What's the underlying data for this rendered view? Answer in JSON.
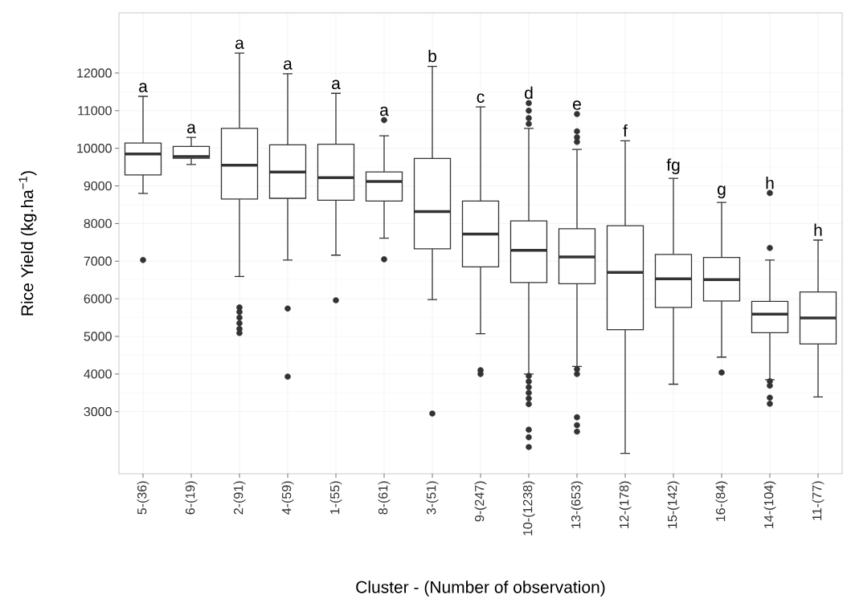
{
  "chart_data": {
    "type": "box",
    "xlabel": "Cluster - (Number of observation)",
    "ylabel": "Rice Yield (kg.ha$^{−1}$)",
    "color": "#333333",
    "grid": true,
    "categories": [
      "5-(36)",
      "6-(19)",
      "2-(91)",
      "4-(59)",
      "1-(55)",
      "8-(61)",
      "3-(51)",
      "9-(247)",
      "10-(1238)",
      "13-(653)",
      "12-(178)",
      "15-(142)",
      "16-(84)",
      "14-(104)",
      "11-(77)"
    ],
    "boxes": [
      {
        "low": 8800,
        "q1": 9290,
        "median": 9850,
        "q3": 10140,
        "high": 11380,
        "outliers": [
          7030
        ]
      },
      {
        "low": 9570,
        "q1": 9735,
        "median": 9780,
        "q3": 10050,
        "high": 10290
      },
      {
        "low": 6590,
        "q1": 8650,
        "median": 9550,
        "q3": 10530,
        "high": 12530,
        "outliers": [
          5770,
          5650,
          5500,
          5350,
          5200,
          5090
        ]
      },
      {
        "low": 7030,
        "q1": 8670,
        "median": 9370,
        "q3": 10090,
        "high": 11980,
        "outliers": [
          5740,
          3930
        ]
      },
      {
        "low": 7160,
        "q1": 8620,
        "median": 9220,
        "q3": 10110,
        "high": 11460,
        "outliers": [
          5960
        ]
      },
      {
        "low": 7610,
        "q1": 8600,
        "median": 9120,
        "q3": 9370,
        "high": 10330,
        "outliers": [
          10750,
          7050
        ]
      },
      {
        "low": 5980,
        "q1": 7330,
        "median": 8320,
        "q3": 9730,
        "high": 12180,
        "outliers": [
          2950
        ]
      },
      {
        "low": 5070,
        "q1": 6850,
        "median": 7720,
        "q3": 8600,
        "high": 11100,
        "outliers": [
          4100,
          4000
        ]
      },
      {
        "low": 4000,
        "q1": 6430,
        "median": 7290,
        "q3": 8070,
        "high": 10530,
        "outliers": [
          11200,
          11000,
          10800,
          10650,
          3950,
          3800,
          3650,
          3500,
          3350,
          3200,
          2520,
          2320,
          2060
        ]
      },
      {
        "low": 4200,
        "q1": 6400,
        "median": 7110,
        "q3": 7860,
        "high": 9970,
        "outliers": [
          10910,
          10450,
          10290,
          10170,
          4130,
          4000,
          2850,
          2640,
          2470
        ]
      },
      {
        "low": 1890,
        "q1": 5180,
        "median": 6700,
        "q3": 7940,
        "high": 10200
      },
      {
        "low": 3730,
        "q1": 5770,
        "median": 6530,
        "q3": 7180,
        "high": 9200
      },
      {
        "low": 4450,
        "q1": 5940,
        "median": 6510,
        "q3": 7100,
        "high": 8560,
        "outliers": [
          4040
        ]
      },
      {
        "low": 3850,
        "q1": 5100,
        "median": 5590,
        "q3": 5930,
        "high": 7030,
        "outliers": [
          8810,
          7350,
          3810,
          3690,
          3370,
          3210
        ]
      },
      {
        "low": 3390,
        "q1": 4800,
        "median": 5490,
        "q3": 6180,
        "high": 7560
      }
    ],
    "annotations": [
      "a",
      "a",
      "a",
      "a",
      "a",
      "a",
      "b",
      "c",
      "d",
      "e",
      "f",
      "fg",
      "g",
      "h",
      "h"
    ],
    "ylim": [
      1350,
      13600
    ],
    "yticks": [
      3000,
      4000,
      5000,
      6000,
      7000,
      8000,
      9000,
      10000,
      11000,
      12000
    ]
  }
}
